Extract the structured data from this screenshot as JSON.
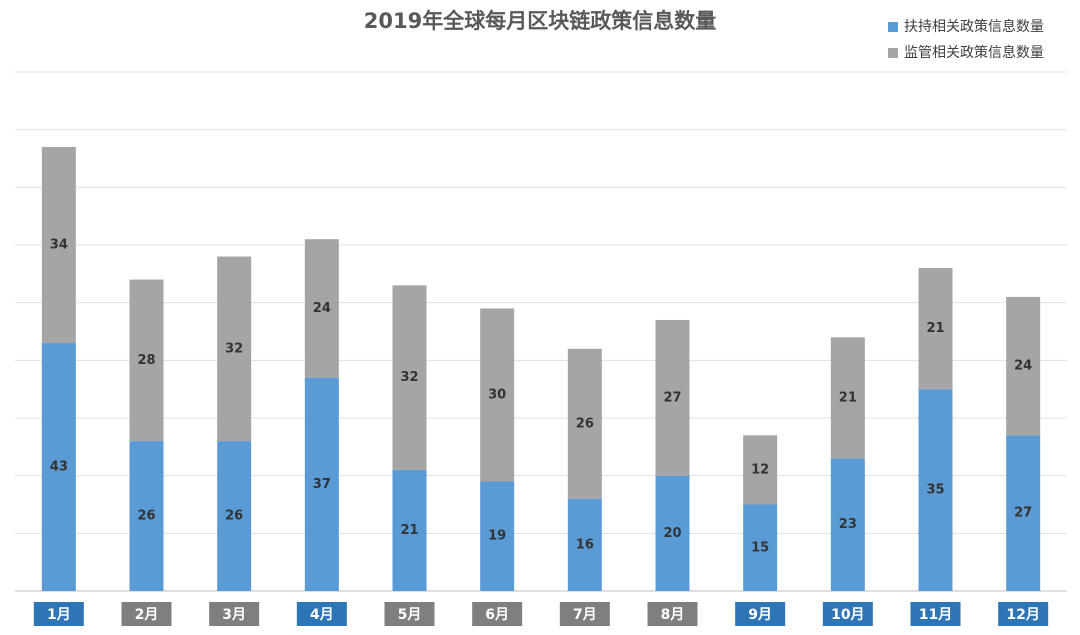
{
  "chart_data": {
    "type": "stacked_bar",
    "title": "2019年全球每月区块链政策信息数量",
    "categories": [
      "1月",
      "2月",
      "3月",
      "4月",
      "5月",
      "6月",
      "7月",
      "8月",
      "9月",
      "10月",
      "11月",
      "12月"
    ],
    "category_label_colors": [
      "#2e75b6",
      "#7f7f7f",
      "#7f7f7f",
      "#2e75b6",
      "#7f7f7f",
      "#7f7f7f",
      "#7f7f7f",
      "#7f7f7f",
      "#2e75b6",
      "#2e75b6",
      "#2e75b6",
      "#2e75b6"
    ],
    "series": [
      {
        "name": "扶持相关政策信息数量",
        "color": "#5b9bd5",
        "values": [
          43,
          26,
          26,
          37,
          21,
          19,
          16,
          20,
          15,
          23,
          35,
          27
        ]
      },
      {
        "name": "监管相关政策信息数量",
        "color": "#a5a5a5",
        "values": [
          34,
          28,
          32,
          24,
          32,
          30,
          26,
          27,
          12,
          21,
          21,
          24
        ]
      }
    ],
    "ylim": [
      0,
      90
    ],
    "yticks": [
      0,
      10,
      20,
      30,
      40,
      50,
      60,
      70,
      80,
      90
    ],
    "grid": true,
    "legend": "top-right"
  }
}
